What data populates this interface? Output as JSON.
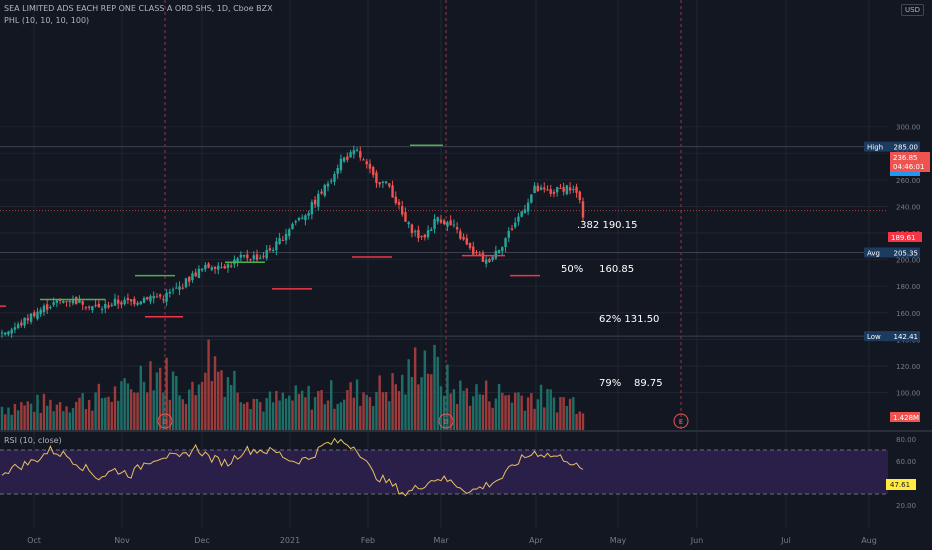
{
  "header": {
    "title": "SEA LIMITED ADS EACH REP ONE CLASS A ORD SHS, 1D, Cboe BZX",
    "indicator": "PHL (10, 10, 10, 100)",
    "currency": "USD",
    "rsi_title": "RSI (10, close)"
  },
  "colors": {
    "background": "#131722",
    "up": "#26a69a",
    "down": "#ef5350",
    "up_volume": "#1e6e68",
    "down_volume": "#9c3b3b",
    "rsi_line": "#e8c15d",
    "rsi_band": "#2a1f48",
    "grid": "#1f2430",
    "axis_text": "#787b86",
    "high_low_label": "#1c3b60",
    "price_label": "#ef5350",
    "rsi_label": "#ffeb3b",
    "phl_green": "#4caf50",
    "phl_red": "#f23645"
  },
  "fib_levels": [
    {
      "ratio": ".382",
      "price": "190.15"
    },
    {
      "ratio": "50%",
      "price": "160.85"
    },
    {
      "ratio": "62%",
      "price": "131.50"
    },
    {
      "ratio": "79%",
      "price": "89.75"
    }
  ],
  "axis_labels": {
    "high": {
      "tag": "High",
      "value": "285.00"
    },
    "avg": {
      "tag": "Avg",
      "value": "205.35"
    },
    "low": {
      "tag": "Low",
      "value": "142.41"
    },
    "last_price": "236.85",
    "countdown": "04:46:01",
    "second_price": "189.61",
    "volume": "1.428M",
    "rsi": "47.61"
  },
  "chart_data": {
    "type": "candlestick",
    "title": "SEA LIMITED ADS EACH REP ONE CLASS A ORD SHS, 1D, Cboe BZX",
    "price_axis_ticks": [
      300,
      280,
      260,
      240,
      220,
      200,
      180,
      160,
      140,
      120,
      100
    ],
    "rsi_axis_ticks": [
      80,
      60,
      40,
      20
    ],
    "rsi_bands": [
      70,
      30
    ],
    "x_ticks": [
      "Oct",
      "Nov",
      "Dec",
      "2021",
      "Feb",
      "Mar",
      "Apr",
      "May",
      "Jun",
      "Jul",
      "Aug"
    ],
    "event_markers": [
      "D",
      "D",
      "E"
    ],
    "high": 285.0,
    "avg": 205.35,
    "low": 142.41,
    "last": 236.85,
    "ohlc_anchors": [
      [
        0,
        145
      ],
      [
        5,
        150
      ],
      [
        10,
        160
      ],
      [
        15,
        166
      ],
      [
        20,
        170
      ],
      [
        25,
        168
      ],
      [
        30,
        163
      ],
      [
        35,
        168
      ],
      [
        40,
        168
      ],
      [
        45,
        172
      ],
      [
        50,
        172
      ],
      [
        55,
        179
      ],
      [
        60,
        190
      ],
      [
        65,
        196
      ],
      [
        70,
        196
      ],
      [
        75,
        202
      ],
      [
        80,
        202
      ],
      [
        85,
        211
      ],
      [
        90,
        227
      ],
      [
        95,
        237
      ],
      [
        100,
        254
      ],
      [
        105,
        275
      ],
      [
        110,
        281
      ],
      [
        115,
        262
      ],
      [
        120,
        255
      ],
      [
        125,
        228
      ],
      [
        130,
        215
      ],
      [
        135,
        232
      ],
      [
        140,
        224
      ],
      [
        145,
        207
      ],
      [
        150,
        198
      ],
      [
        155,
        212
      ],
      [
        160,
        232
      ],
      [
        165,
        253
      ],
      [
        170,
        250
      ],
      [
        175,
        255
      ],
      [
        178,
        250
      ],
      [
        180,
        234
      ]
    ],
    "volume_anchors": [
      [
        0,
        0.3
      ],
      [
        20,
        0.35
      ],
      [
        40,
        0.5
      ],
      [
        45,
        0.85
      ],
      [
        60,
        0.45
      ],
      [
        62,
        1.0
      ],
      [
        80,
        0.35
      ],
      [
        100,
        0.45
      ],
      [
        115,
        0.5
      ],
      [
        125,
        0.6
      ],
      [
        130,
        1.0
      ],
      [
        140,
        0.5
      ],
      [
        160,
        0.45
      ],
      [
        180,
        0.35
      ]
    ],
    "rsi_anchors": [
      [
        0,
        50
      ],
      [
        10,
        60
      ],
      [
        15,
        70
      ],
      [
        20,
        65
      ],
      [
        25,
        55
      ],
      [
        30,
        45
      ],
      [
        35,
        52
      ],
      [
        40,
        48
      ],
      [
        45,
        60
      ],
      [
        50,
        65
      ],
      [
        55,
        62
      ],
      [
        60,
        72
      ],
      [
        65,
        62
      ],
      [
        70,
        58
      ],
      [
        75,
        70
      ],
      [
        80,
        70
      ],
      [
        85,
        68
      ],
      [
        90,
        60
      ],
      [
        95,
        62
      ],
      [
        100,
        75
      ],
      [
        105,
        78
      ],
      [
        110,
        72
      ],
      [
        115,
        48
      ],
      [
        120,
        40
      ],
      [
        125,
        30
      ],
      [
        130,
        38
      ],
      [
        135,
        45
      ],
      [
        140,
        40
      ],
      [
        145,
        32
      ],
      [
        150,
        38
      ],
      [
        155,
        45
      ],
      [
        160,
        60
      ],
      [
        165,
        68
      ],
      [
        170,
        65
      ],
      [
        175,
        62
      ],
      [
        180,
        50
      ]
    ]
  }
}
